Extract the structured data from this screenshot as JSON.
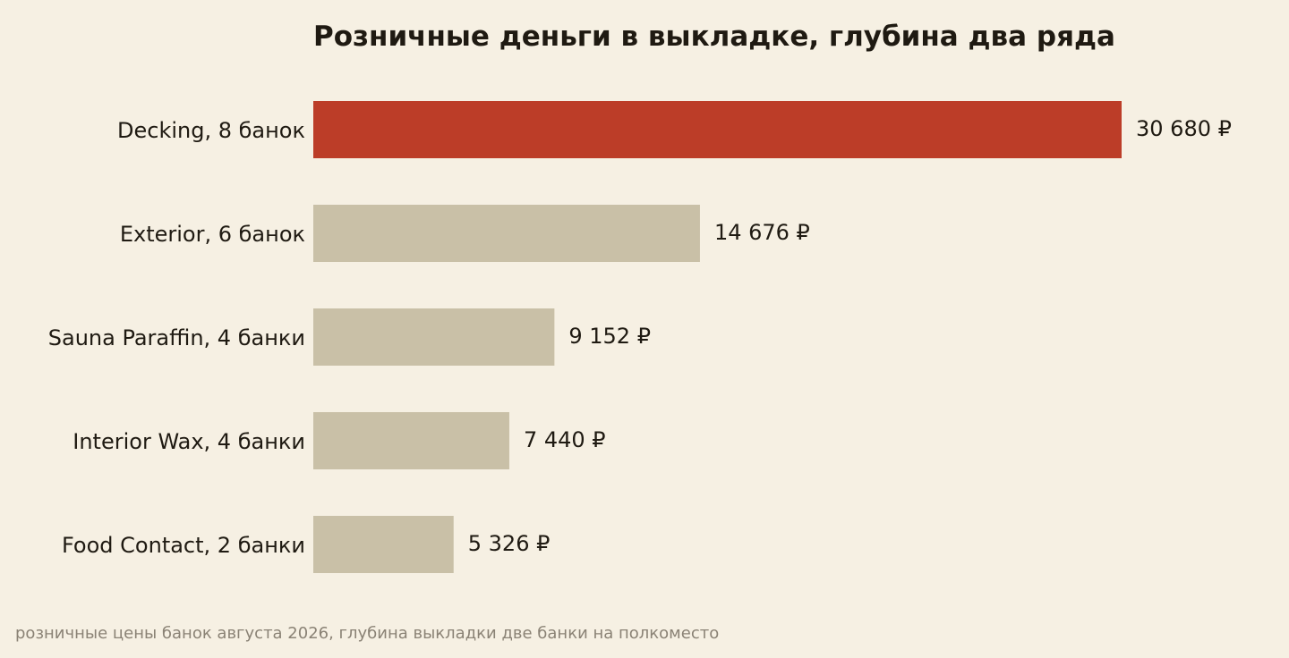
{
  "chart_data": {
    "type": "bar",
    "orientation": "horizontal",
    "title": "Розничные деньги в выкладке, глубина два ряда",
    "categories": [
      "Decking, 8 банок",
      "Exterior, 6 банок",
      "Sauna Paraffin, 4 банки",
      "Interior Wax, 4 банки",
      "Food Contact, 2 банки"
    ],
    "values": [
      30680,
      14676,
      9152,
      7440,
      5326
    ],
    "value_labels": [
      "30 680 ₽",
      "14 676 ₽",
      "9 152 ₽",
      "7 440 ₽",
      "5 326 ₽"
    ],
    "highlight_index": 0,
    "xlim": [
      0,
      30680
    ],
    "grid": false,
    "legend": "none",
    "colors": {
      "background": "#f6f0e3",
      "highlight": "#bc3d28",
      "bar": "#c9c0a7",
      "text": "#1f1a12",
      "note": "#8a8275"
    },
    "footnote": "розничные цены банок августа 2026, глубина выкладки две банки на полкоместо"
  }
}
